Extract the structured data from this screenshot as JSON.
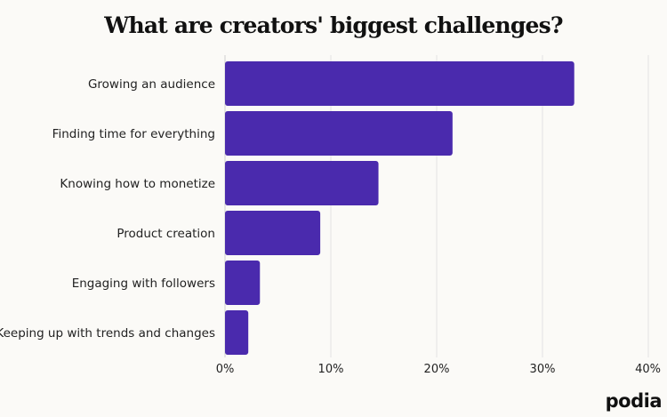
{
  "chart_data": {
    "type": "bar",
    "orientation": "horizontal",
    "title": "What are creators' biggest challenges?",
    "xlabel": "",
    "ylabel": "",
    "categories": [
      "Growing an audience",
      "Finding time for everything",
      "Knowing how to monetize",
      "Product creation",
      "Engaging with followers",
      "Keeping up with trends and changes"
    ],
    "values": [
      33,
      21.5,
      14.5,
      9,
      3.3,
      2.2
    ],
    "unit": "%",
    "xlim": [
      0,
      40
    ],
    "xticks": [
      "0%",
      "10%",
      "20%",
      "30%",
      "40%"
    ],
    "grid": "vertical",
    "bar_color": "#4a2aad"
  },
  "brand": {
    "logo_text": "podia"
  }
}
